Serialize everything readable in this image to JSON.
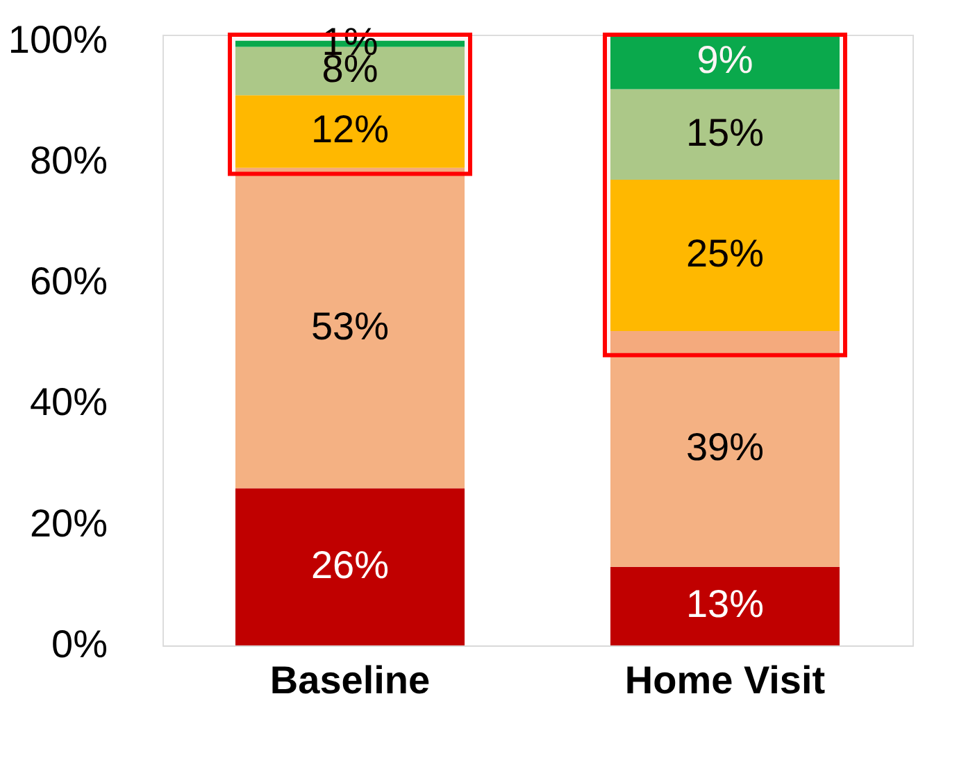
{
  "chart_data": {
    "type": "bar",
    "stacked": true,
    "categories": [
      "Baseline",
      "Home Visit"
    ],
    "series": [
      {
        "color": "#c00000",
        "values": [
          26,
          13
        ],
        "value_labels": [
          "26%",
          "13%"
        ]
      },
      {
        "color": "#f4b183",
        "values": [
          53,
          39
        ],
        "value_labels": [
          "53%",
          "39%"
        ]
      },
      {
        "color": "#ffc000",
        "values": [
          12,
          25
        ],
        "value_labels": [
          "12%",
          "25%"
        ]
      },
      {
        "color": "#a9d18e",
        "values": [
          8,
          15
        ],
        "value_labels": [
          "8%",
          "15%"
        ]
      },
      {
        "color": "#00b050",
        "values": [
          1,
          9
        ],
        "value_labels": [
          "1%",
          "9%"
        ]
      }
    ],
    "ylim": [
      0,
      101
    ],
    "yticks": [
      {
        "value": 0,
        "label": "0%"
      },
      {
        "value": 20,
        "label": "20%"
      },
      {
        "value": 40,
        "label": "40%"
      },
      {
        "value": 60,
        "label": "60%"
      },
      {
        "value": 80,
        "label": "80%"
      },
      {
        "value": 100,
        "label": "100%"
      }
    ],
    "bands": [
      {
        "axis": "y",
        "from": 78,
        "to": 101,
        "color": "#ff0000"
      },
      {
        "axis": "y",
        "from": 48,
        "to": 101,
        "color": "#ff0000"
      }
    ],
    "grid": false
  }
}
